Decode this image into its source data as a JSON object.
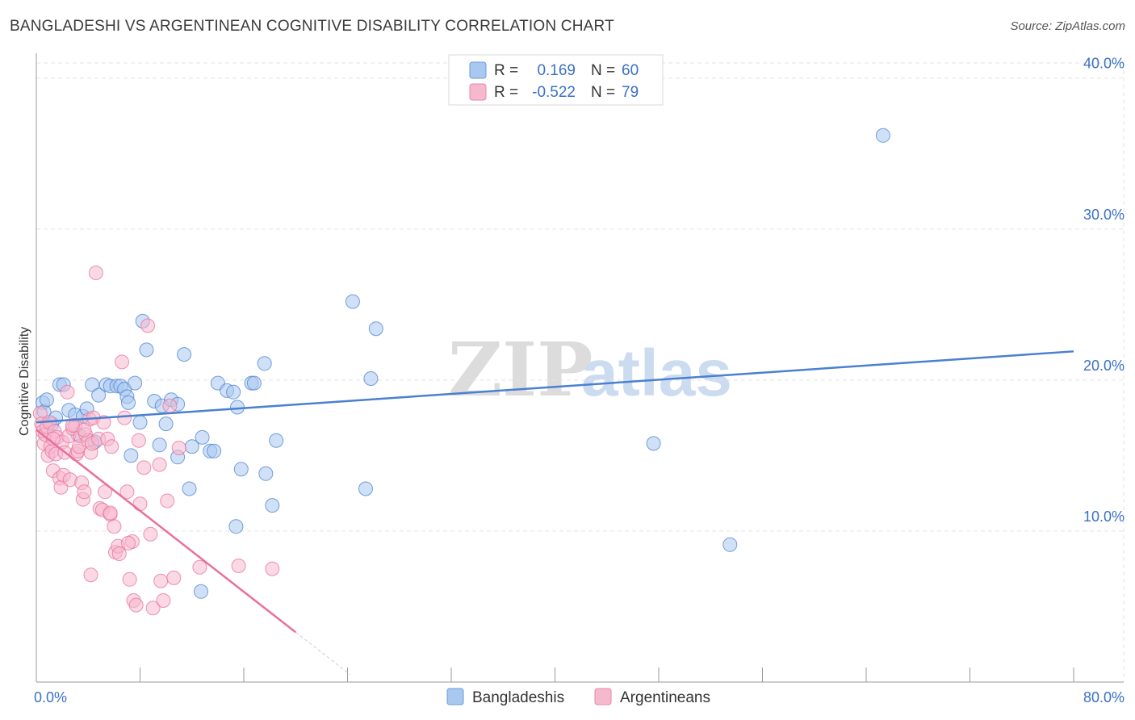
{
  "title": "BANGLADESHI VS ARGENTINEAN COGNITIVE DISABILITY CORRELATION CHART",
  "source": "Source: ZipAtlas.com",
  "watermark": {
    "zip": "ZIP",
    "atlas": "atlas"
  },
  "colors": {
    "blue": "#4a80d2",
    "blue_fill": "#a9c8f0",
    "pink": "#e8709a",
    "pink_fill": "#f6b8cd",
    "grid": "#e3e3e3",
    "axis_label": "#3b70c4"
  },
  "legend_top": [
    {
      "series": "Bangladeshis",
      "r_label": "R =",
      "r_value": "0.169",
      "n_label": "N =",
      "n_value": "60"
    },
    {
      "series": "Argentineans",
      "r_label": "R =",
      "r_value": "-0.522",
      "n_label": "N =",
      "n_value": "79"
    }
  ],
  "legend_bottom": [
    "Bangladeshis",
    "Argentineans"
  ],
  "chart_data": {
    "type": "scatter",
    "title": "BANGLADESHI VS ARGENTINEAN COGNITIVE DISABILITY CORRELATION CHART",
    "xlabel": "",
    "ylabel": "Cognitive Disability",
    "xlim": [
      0,
      80
    ],
    "ylim": [
      0,
      41
    ],
    "x_tick_labels": [
      "0.0%",
      "80.0%"
    ],
    "y_ticks": [
      10,
      20,
      30,
      40
    ],
    "y_tick_labels": [
      "10.0%",
      "20.0%",
      "30.0%",
      "40.0%"
    ],
    "grid": true,
    "series": [
      {
        "name": "Bangladeshis",
        "r": 0.169,
        "n": 60,
        "trend": {
          "x": [
            0,
            80
          ],
          "y": [
            17.2,
            21.9
          ]
        },
        "points": [
          [
            0.5,
            18.5
          ],
          [
            0.6,
            17.9
          ],
          [
            0.8,
            18.7
          ],
          [
            1.2,
            17.1
          ],
          [
            1.5,
            17.5
          ],
          [
            1.8,
            19.7
          ],
          [
            2.1,
            19.7
          ],
          [
            2.5,
            18.0
          ],
          [
            3.0,
            17.7
          ],
          [
            3.2,
            16.4
          ],
          [
            3.6,
            17.6
          ],
          [
            3.9,
            18.1
          ],
          [
            4.3,
            19.7
          ],
          [
            4.5,
            15.9
          ],
          [
            4.8,
            19.0
          ],
          [
            5.4,
            19.7
          ],
          [
            5.7,
            19.6
          ],
          [
            6.2,
            19.6
          ],
          [
            6.5,
            19.6
          ],
          [
            6.8,
            19.4
          ],
          [
            7.0,
            18.9
          ],
          [
            7.1,
            18.5
          ],
          [
            7.6,
            19.8
          ],
          [
            7.3,
            15.0
          ],
          [
            8.0,
            17.2
          ],
          [
            8.2,
            23.9
          ],
          [
            8.5,
            22.0
          ],
          [
            9.1,
            18.6
          ],
          [
            9.5,
            15.7
          ],
          [
            9.7,
            18.3
          ],
          [
            10.0,
            17.1
          ],
          [
            10.4,
            18.7
          ],
          [
            10.9,
            18.4
          ],
          [
            10.9,
            14.9
          ],
          [
            11.4,
            21.7
          ],
          [
            11.8,
            12.8
          ],
          [
            12.0,
            15.6
          ],
          [
            12.8,
            16.2
          ],
          [
            13.4,
            15.3
          ],
          [
            13.7,
            15.3
          ],
          [
            14.0,
            19.8
          ],
          [
            14.7,
            19.3
          ],
          [
            15.2,
            19.2
          ],
          [
            15.4,
            10.3
          ],
          [
            15.5,
            18.2
          ],
          [
            15.8,
            14.1
          ],
          [
            16.6,
            19.8
          ],
          [
            16.8,
            19.8
          ],
          [
            17.6,
            21.1
          ],
          [
            17.7,
            13.8
          ],
          [
            18.2,
            11.7
          ],
          [
            18.5,
            16.0
          ],
          [
            12.7,
            6.0
          ],
          [
            24.4,
            25.2
          ],
          [
            25.4,
            12.8
          ],
          [
            25.8,
            20.1
          ],
          [
            26.2,
            23.4
          ],
          [
            47.6,
            15.8
          ],
          [
            53.5,
            9.1
          ],
          [
            65.3,
            36.2
          ]
        ]
      },
      {
        "name": "Argentineans",
        "r": -0.522,
        "n": 79,
        "trend": {
          "x": [
            0,
            20
          ],
          "y": [
            16.7,
            3.3
          ]
        },
        "trend_dashed": {
          "x": [
            20,
            24.2
          ],
          "y": [
            3.3,
            0.5
          ]
        },
        "points": [
          [
            0.3,
            17.8
          ],
          [
            0.4,
            17.1
          ],
          [
            0.5,
            16.6
          ],
          [
            0.6,
            15.8
          ],
          [
            0.7,
            16.4
          ],
          [
            0.8,
            16.9
          ],
          [
            0.9,
            15.0
          ],
          [
            1.0,
            17.2
          ],
          [
            1.1,
            15.6
          ],
          [
            1.2,
            15.3
          ],
          [
            1.3,
            14.0
          ],
          [
            1.4,
            16.6
          ],
          [
            1.5,
            15.1
          ],
          [
            1.6,
            16.2
          ],
          [
            1.8,
            13.5
          ],
          [
            1.9,
            12.9
          ],
          [
            2.0,
            15.9
          ],
          [
            2.1,
            13.7
          ],
          [
            2.2,
            15.2
          ],
          [
            2.4,
            19.2
          ],
          [
            2.5,
            16.3
          ],
          [
            2.6,
            13.4
          ],
          [
            2.8,
            16.8
          ],
          [
            3.0,
            17.0
          ],
          [
            3.1,
            15.1
          ],
          [
            3.2,
            15.3
          ],
          [
            3.3,
            15.6
          ],
          [
            3.4,
            16.3
          ],
          [
            3.5,
            13.2
          ],
          [
            3.6,
            12.1
          ],
          [
            3.7,
            12.6
          ],
          [
            3.8,
            16.4
          ],
          [
            4.0,
            16.0
          ],
          [
            4.1,
            17.4
          ],
          [
            4.2,
            15.2
          ],
          [
            4.3,
            15.8
          ],
          [
            4.4,
            17.5
          ],
          [
            4.6,
            27.1
          ],
          [
            4.8,
            16.1
          ],
          [
            4.9,
            11.5
          ],
          [
            5.1,
            11.4
          ],
          [
            5.2,
            17.2
          ],
          [
            5.3,
            12.6
          ],
          [
            5.5,
            16.1
          ],
          [
            5.7,
            11.1
          ],
          [
            5.8,
            15.6
          ],
          [
            6.0,
            10.3
          ],
          [
            6.1,
            8.6
          ],
          [
            6.3,
            9.0
          ],
          [
            6.6,
            21.2
          ],
          [
            6.8,
            17.5
          ],
          [
            7.0,
            12.6
          ],
          [
            7.2,
            6.8
          ],
          [
            7.4,
            9.3
          ],
          [
            7.5,
            5.4
          ],
          [
            7.7,
            5.1
          ],
          [
            7.9,
            16.0
          ],
          [
            8.0,
            11.8
          ],
          [
            8.3,
            14.2
          ],
          [
            8.6,
            23.6
          ],
          [
            8.8,
            9.8
          ],
          [
            9.0,
            4.9
          ],
          [
            9.5,
            14.4
          ],
          [
            9.6,
            6.7
          ],
          [
            9.8,
            5.4
          ],
          [
            10.1,
            12.0
          ],
          [
            10.3,
            18.3
          ],
          [
            10.6,
            6.9
          ],
          [
            11.0,
            15.5
          ],
          [
            4.2,
            7.1
          ],
          [
            5.7,
            11.2
          ],
          [
            15.6,
            7.7
          ],
          [
            18.2,
            7.5
          ],
          [
            12.6,
            7.6
          ],
          [
            2.8,
            17.0
          ],
          [
            1.3,
            16.1
          ],
          [
            3.7,
            16.7
          ],
          [
            6.4,
            8.5
          ],
          [
            7.1,
            9.2
          ]
        ]
      }
    ]
  }
}
